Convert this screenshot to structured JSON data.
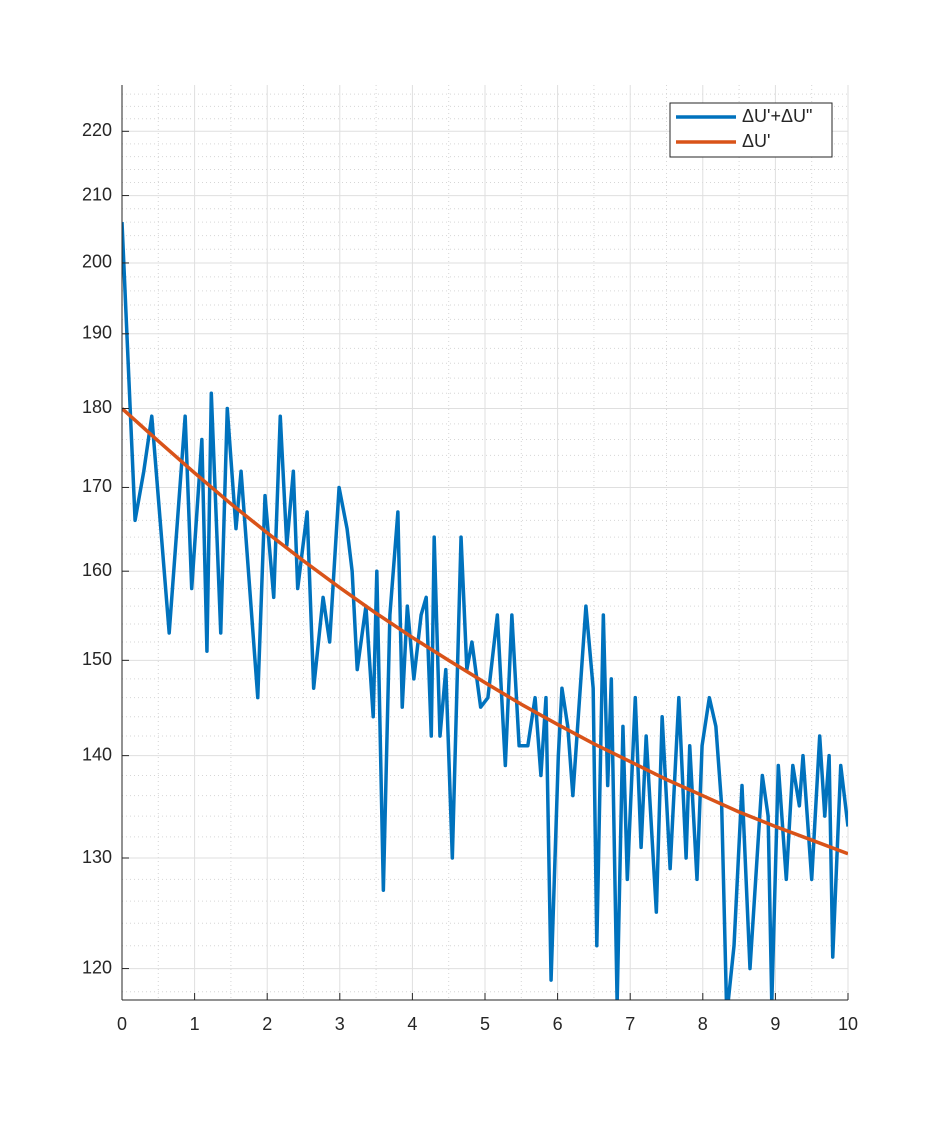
{
  "chart_data": {
    "type": "line",
    "xlim": [
      0,
      10
    ],
    "xticks": [
      0,
      1,
      2,
      3,
      4,
      5,
      6,
      7,
      8,
      9,
      10
    ],
    "xminorticks": [
      0.5,
      1.5,
      2.5,
      3.5,
      4.5,
      5.5,
      6.5,
      7.5,
      8.5,
      9.5
    ],
    "ylim": [
      117.3,
      227.5
    ],
    "yscale": "log",
    "yticks": [
      120,
      130,
      140,
      150,
      160,
      170,
      180,
      190,
      200,
      210,
      220
    ],
    "yminorticks": [
      118,
      122,
      124,
      126,
      128,
      132,
      134,
      136,
      138,
      142,
      144,
      146,
      148,
      152,
      154,
      156,
      158,
      162,
      164,
      166,
      168,
      172,
      174,
      176,
      178,
      182,
      184,
      186,
      188,
      192,
      194,
      196,
      198,
      202,
      204,
      206,
      208,
      212,
      214,
      216,
      218,
      222,
      224,
      226
    ],
    "grid": true,
    "minor_grid": true,
    "legend": "northeast",
    "series": [
      {
        "name": "ΔU'+ΔU\"",
        "color": "#0072BD",
        "x": [
          0,
          0.18,
          0.3,
          0.41,
          0.65,
          0.87,
          0.96,
          1.1,
          1.17,
          1.23,
          1.36,
          1.45,
          1.57,
          1.64,
          1.87,
          1.97,
          2.09,
          2.18,
          2.27,
          2.36,
          2.42,
          2.55,
          2.64,
          2.77,
          2.86,
          2.99,
          3.1,
          3.17,
          3.24,
          3.36,
          3.46,
          3.51,
          3.6,
          3.69,
          3.8,
          3.86,
          3.93,
          4.02,
          4.12,
          4.19,
          4.26,
          4.3,
          4.38,
          4.46,
          4.55,
          4.67,
          4.75,
          4.82,
          4.94,
          5.04,
          5.17,
          5.28,
          5.37,
          5.47,
          5.59,
          5.69,
          5.77,
          5.84,
          5.91,
          6.01,
          6.06,
          6.14,
          6.21,
          6.39,
          6.49,
          6.54,
          6.63,
          6.69,
          6.74,
          6.82,
          6.9,
          6.96,
          7.07,
          7.15,
          7.22,
          7.36,
          7.44,
          7.55,
          7.67,
          7.77,
          7.82,
          7.92,
          7.99,
          8.09,
          8.18,
          8.26,
          8.33,
          8.43,
          8.54,
          8.65,
          8.82,
          8.9,
          8.95,
          9.04,
          9.15,
          9.24,
          9.33,
          9.38,
          9.5,
          9.61,
          9.68,
          9.74,
          9.79,
          9.9,
          10
        ],
        "values": [
          206,
          166,
          172,
          179,
          153,
          179,
          158,
          176,
          151,
          182,
          153,
          180,
          165,
          172,
          146,
          169,
          157,
          179,
          163,
          172,
          158,
          167,
          147,
          157,
          152,
          170,
          165,
          160,
          149,
          156,
          144,
          160,
          127,
          155,
          167,
          145,
          156,
          148,
          155,
          157,
          142,
          164,
          142,
          149,
          130,
          164,
          149,
          152,
          145,
          146,
          155,
          139,
          155,
          141,
          141,
          146,
          138,
          146,
          119,
          140,
          147,
          143,
          136,
          156,
          147,
          122,
          155,
          137,
          148,
          117,
          143,
          128,
          146,
          131,
          142,
          125,
          144,
          129,
          146,
          130,
          141,
          128,
          141,
          146,
          143,
          135,
          116,
          122,
          137,
          120,
          138,
          134,
          117,
          139,
          128,
          139,
          135,
          140,
          128,
          142,
          134,
          140,
          121,
          139,
          133
        ]
      },
      {
        "name": "ΔU'",
        "color": "#D95319",
        "x": [
          0,
          0.5,
          1,
          1.5,
          2,
          2.5,
          3,
          3.5,
          4,
          4.5,
          5,
          5.5,
          6,
          6.5,
          7,
          7.5,
          8,
          8.5,
          9,
          9.5,
          10
        ],
        "values": [
          180,
          175.8,
          171.8,
          168.0,
          164.5,
          161.2,
          158.1,
          155.2,
          152.5,
          150.0,
          147.6,
          145.3,
          143.2,
          141.2,
          139.4,
          137.6,
          136.0,
          134.4,
          133.0,
          131.7,
          130.4
        ]
      }
    ]
  }
}
